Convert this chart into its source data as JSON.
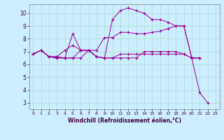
{
  "xlabel": "Windchill (Refroidissement éolien,°C)",
  "background_color": "#cceeff",
  "line_color": "#990099",
  "xlim": [
    -0.5,
    23.5
  ],
  "ylim": [
    2.5,
    10.7
  ],
  "xticks": [
    0,
    1,
    2,
    3,
    4,
    5,
    6,
    7,
    8,
    9,
    10,
    11,
    12,
    13,
    14,
    15,
    16,
    17,
    18,
    19,
    20,
    21,
    22,
    23
  ],
  "yticks": [
    3,
    4,
    5,
    6,
    7,
    8,
    9,
    10
  ],
  "grid_color": "#aaddcc",
  "series": [
    {
      "x": [
        0,
        1,
        2,
        3,
        4,
        5,
        6,
        7,
        8,
        9,
        10,
        11,
        12,
        13,
        14,
        15,
        16,
        17,
        18,
        19,
        20,
        21,
        22
      ],
      "y": [
        6.8,
        7.1,
        6.6,
        6.6,
        6.5,
        8.4,
        7.1,
        7.1,
        6.6,
        6.5,
        9.5,
        10.2,
        10.4,
        10.2,
        10.0,
        9.5,
        9.5,
        9.3,
        9.0,
        9.0,
        6.5,
        3.8,
        3.0
      ]
    },
    {
      "x": [
        0,
        1,
        2,
        3,
        4,
        5,
        6,
        7,
        8,
        9,
        10,
        11,
        12,
        13,
        14,
        15,
        16,
        17,
        18,
        19,
        20,
        21
      ],
      "y": [
        6.8,
        7.1,
        6.6,
        6.6,
        7.1,
        7.5,
        7.1,
        7.1,
        7.1,
        8.1,
        8.1,
        8.5,
        8.5,
        8.4,
        8.4,
        8.5,
        8.6,
        8.8,
        9.0,
        9.0,
        6.5,
        6.5
      ]
    },
    {
      "x": [
        0,
        1,
        2,
        3,
        4,
        5,
        6,
        7,
        8,
        9,
        10,
        11,
        12,
        13,
        14,
        15,
        16,
        17,
        18,
        19,
        20,
        21
      ],
      "y": [
        6.8,
        7.1,
        6.6,
        6.5,
        6.5,
        6.5,
        7.1,
        7.1,
        6.6,
        6.5,
        6.5,
        6.8,
        6.8,
        6.8,
        6.8,
        6.8,
        6.8,
        6.8,
        6.8,
        6.8,
        6.5,
        6.5
      ]
    },
    {
      "x": [
        0,
        1,
        2,
        3,
        4,
        5,
        6,
        7,
        8,
        9,
        10,
        11,
        12,
        13,
        14,
        15,
        16,
        17,
        18,
        19,
        20,
        21
      ],
      "y": [
        6.8,
        7.1,
        6.6,
        6.5,
        6.5,
        6.5,
        6.5,
        7.1,
        6.6,
        6.5,
        6.5,
        6.5,
        6.5,
        6.5,
        7.0,
        7.0,
        7.0,
        7.0,
        7.0,
        6.8,
        6.5,
        6.5
      ]
    }
  ]
}
